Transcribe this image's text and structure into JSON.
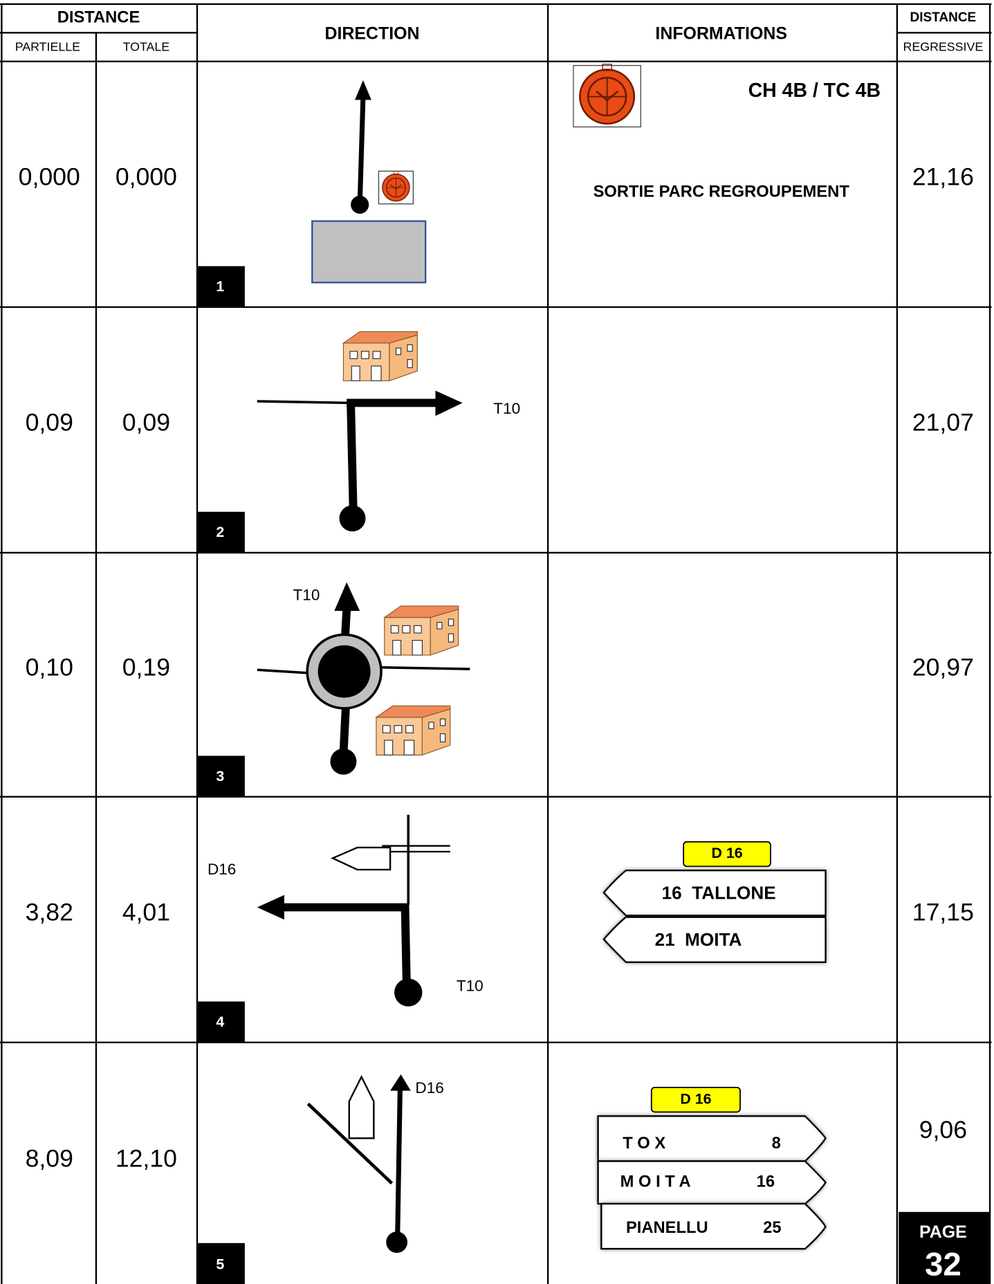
{
  "header": {
    "distance": "DISTANCE",
    "partielle": "PARTIELLE",
    "totale": "TOTALE",
    "direction": "DIRECTION",
    "informations": "INFORMATIONS",
    "distance_right": "DISTANCE",
    "regressive": "REGRESSIVE"
  },
  "rows": [
    {
      "number": "1",
      "partielle": "0,000",
      "totale": "0,000",
      "regressive": "21,16",
      "info": [
        "CH 4B / TC 4B",
        "SORTIE PARC REGROUPEMENT"
      ]
    },
    {
      "number": "2",
      "partielle": "0,09",
      "totale": "0,09",
      "regressive": "21,07",
      "direction_labels": [
        "T10"
      ]
    },
    {
      "number": "3",
      "partielle": "0,10",
      "totale": "0,19",
      "regressive": "20,97",
      "direction_labels": [
        "T10"
      ]
    },
    {
      "number": "4",
      "partielle": "3,82",
      "totale": "4,01",
      "regressive": "17,15",
      "direction_labels": [
        "D16",
        "T10"
      ],
      "sign": {
        "road": "D 16",
        "lines": [
          "16  TALLONE",
          "21  MOITA"
        ]
      }
    },
    {
      "number": "5",
      "partielle": "8,09",
      "totale": "12,10",
      "regressive": "9,06",
      "direction_labels": [
        "D16"
      ],
      "sign": {
        "road": "D 16",
        "lines": [
          {
            "name": "T O X",
            "distance": "8"
          },
          {
            "name": "M O I T A",
            "distance": "16"
          },
          {
            "name": "PIANELLU",
            "distance": "25"
          }
        ]
      }
    }
  ],
  "page": {
    "label": "PAGE",
    "number": "32"
  }
}
